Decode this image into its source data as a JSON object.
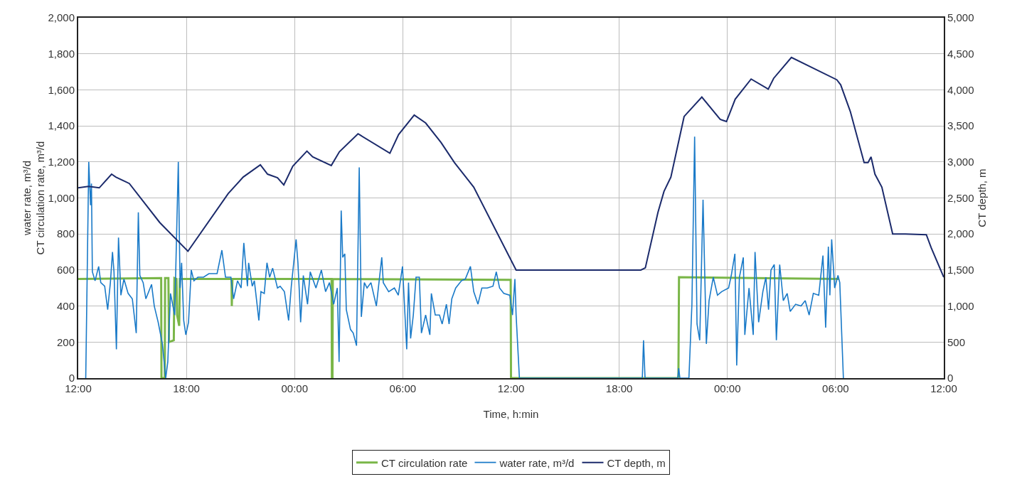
{
  "chart_data": {
    "type": "line",
    "xlabel": "Time, h:min",
    "ylabel": "water rate, m³/d\nCT circulation rate, m³/d",
    "y2label": "CT depth, m",
    "xlim": [
      "--01-01T12:00",
      "--01-03T12:00"
    ],
    "xticks": [
      {
        "value": "--01-01T12:00",
        "label": "12:00"
      },
      {
        "value": "--01-01T18:00",
        "label": "18:00"
      },
      {
        "value": "--01-02T00:00",
        "label": "00:00"
      },
      {
        "value": "--01-02T06:00",
        "label": "06:00"
      },
      {
        "value": "--01-02T12:00",
        "label": "12:00"
      },
      {
        "value": "--01-02T18:00",
        "label": "18:00"
      },
      {
        "value": "--01-03T00:00",
        "label": "00:00"
      },
      {
        "value": "--01-03T06:00",
        "label": "06:00"
      },
      {
        "value": "--01-03T12:00",
        "label": "12:00"
      }
    ],
    "ylim": [
      0,
      2000
    ],
    "yticks": [
      0,
      200,
      400,
      600,
      800,
      {
        "value": 1000,
        "label": "1,000"
      },
      {
        "value": 1200,
        "label": "1,200"
      },
      {
        "value": 1400,
        "label": "1,400"
      },
      {
        "value": 1600,
        "label": "1,600"
      },
      {
        "value": 1800,
        "label": "1,800"
      },
      {
        "value": 2000,
        "label": "2,000"
      }
    ],
    "y2lim": [
      0,
      5000
    ],
    "y2ticks": [
      0,
      500,
      {
        "value": 1000,
        "label": "1,000"
      },
      {
        "value": 1500,
        "label": "1,500"
      },
      {
        "value": 2000,
        "label": "2,000"
      },
      {
        "value": 2500,
        "label": "2,500"
      },
      {
        "value": 3000,
        "label": "3,000"
      },
      {
        "value": 3500,
        "label": "3,500"
      },
      {
        "value": 4000,
        "label": "4,000"
      },
      {
        "value": 4500,
        "label": "4,500"
      },
      {
        "value": 5000,
        "label": "5,000"
      }
    ],
    "grid": true,
    "legend": "bottom",
    "marker": "none",
    "line_style": "solid",
    "series": [
      {
        "name": "CT circulation rate",
        "color": "#7ab648",
        "axis": "y",
        "x": [
          "--01-01T12:00",
          "--01-01T16:36",
          "--01-01T16:37",
          "--01-01T16:48",
          "--01-01T16:49",
          "--01-01T17:00",
          "--01-01T17:02",
          "--01-01T17:18",
          "--01-01T17:20",
          "--01-01T17:27",
          "--01-01T17:29",
          "--01-01T17:36",
          "--01-01T17:38",
          "--01-01T20:30",
          "--01-01T20:31",
          "--01-01T20:33",
          "--01-02T02:03",
          "--01-02T02:04",
          "--01-02T02:06",
          "--01-02T02:07",
          "--01-02T11:59",
          "--01-02T12:00",
          "--01-02T21:17",
          "--01-02T21:18",
          "--01-02T21:19",
          "--01-03T06:12"
        ],
        "values": [
          550,
          555,
          0,
          0,
          555,
          555,
          200,
          210,
          555,
          550,
          350,
          290,
          550,
          550,
          400,
          550,
          550,
          0,
          0,
          550,
          545,
          0,
          0,
          260,
          560,
          550
        ]
      },
      {
        "name": "water rate, m³/d",
        "color": "#1a7ac8",
        "axis": "y",
        "x": [
          "--01-01T12:25",
          "--01-01T12:35",
          "--01-01T12:41",
          "--01-01T12:44",
          "--01-01T12:47",
          "--01-01T12:56",
          "--01-01T13:08",
          "--01-01T13:15",
          "--01-01T13:28",
          "--01-01T13:38",
          "--01-01T13:47",
          "--01-01T13:54",
          "--01-01T13:59",
          "--01-01T14:07",
          "--01-01T14:14",
          "--01-01T14:22",
          "--01-01T14:32",
          "--01-01T14:46",
          "--01-01T15:00",
          "--01-01T15:13",
          "--01-01T15:20",
          "--01-01T15:25",
          "--01-01T15:36",
          "--01-01T15:45",
          "--01-01T16:04",
          "--01-01T16:13",
          "--01-01T16:26",
          "--01-01T16:40",
          "--01-01T16:51",
          "--01-01T16:58",
          "--01-01T17:07",
          "--01-01T17:21",
          "--01-01T17:33",
          "--01-01T17:39",
          "--01-01T17:44",
          "--01-01T17:51",
          "--01-01T17:58",
          "--01-01T18:07",
          "--01-01T18:16",
          "--01-01T18:25",
          "--01-01T18:38",
          "--01-01T18:57",
          "--01-01T19:15",
          "--01-01T19:42",
          "--01-01T19:58",
          "--01-01T20:10",
          "--01-01T20:28",
          "--01-01T20:37",
          "--01-01T20:50",
          "--01-01T21:02",
          "--01-01T21:11",
          "--01-01T21:23",
          "--01-01T21:27",
          "--01-01T21:39",
          "--01-01T21:46",
          "--01-01T21:55",
          "--01-01T22:01",
          "--01-01T22:08",
          "--01-01T22:19",
          "--01-01T22:28",
          "--01-01T22:37",
          "--01-01T22:47",
          "--01-01T23:03",
          "--01-01T23:12",
          "--01-01T23:26",
          "--01-01T23:40",
          "--01-01T23:49",
          "--01-02T00:05",
          "--01-02T00:11",
          "--01-02T00:16",
          "--01-02T00:20",
          "--01-02T00:29",
          "--01-02T00:43",
          "--01-02T00:52",
          "--01-02T01:11",
          "--01-02T01:29",
          "--01-02T01:43",
          "--01-02T01:56",
          "--01-02T02:10",
          "--01-02T02:22",
          "--01-02T02:28",
          "--01-02T02:35",
          "--01-02T02:40",
          "--01-02T02:47",
          "--01-02T02:52",
          "--01-02T03:06",
          "--01-02T03:15",
          "--01-02T03:26",
          "--01-02T03:35",
          "--01-02T03:42",
          "--01-02T03:52",
          "--01-02T04:01",
          "--01-02T04:14",
          "--01-02T04:32",
          "--01-02T04:50",
          "--01-02T04:55",
          "--01-02T05:13",
          "--01-02T05:32",
          "--01-02T05:45",
          "--01-02T05:59",
          "--01-02T06:13",
          "--01-02T06:19",
          "--01-02T06:26",
          "--01-02T06:35",
          "--01-02T06:44",
          "--01-02T06:55",
          "--01-02T07:02",
          "--01-02T07:16",
          "--01-02T07:30",
          "--01-02T07:35",
          "--01-02T07:48",
          "--01-02T08:02",
          "--01-02T08:11",
          "--01-02T08:25",
          "--01-02T08:34",
          "--01-02T08:43",
          "--01-02T08:56",
          "--01-02T09:15",
          "--01-02T09:28",
          "--01-02T09:45",
          "--01-02T09:56",
          "--01-02T10:10",
          "--01-02T10:23",
          "--01-02T10:41",
          "--01-02T11:00",
          "--01-02T11:11",
          "--01-02T11:22",
          "--01-02T11:36",
          "--01-02T11:56",
          "--01-02T12:05",
          "--01-02T12:13",
          "--01-02T12:17",
          "--01-02T12:28",
          "--01-02T19:17",
          "--01-02T19:21",
          "--01-02T19:26",
          "--01-02T21:15",
          "--01-02T21:18",
          "--01-02T21:22",
          "--01-02T21:52",
          "--01-02T22:02",
          "--01-02T22:11",
          "--01-02T22:19",
          "--01-02T22:28",
          "--01-02T22:39",
          "--01-02T22:50",
          "--01-02T22:59",
          "--01-02T23:13",
          "--01-02T23:27",
          "--01-02T23:41",
          "--01-03T00:04",
          "--01-03T00:13",
          "--01-03T00:25",
          "--01-03T00:31",
          "--01-03T00:40",
          "--01-03T00:53",
          "--01-03T00:58",
          "--01-03T01:12",
          "--01-03T01:26",
          "--01-03T01:32",
          "--01-03T01:44",
          "--01-03T01:58",
          "--01-03T02:08",
          "--01-03T02:17",
          "--01-03T02:25",
          "--01-03T02:36",
          "--01-03T02:43",
          "--01-03T02:54",
          "--01-03T03:06",
          "--01-03T03:19",
          "--01-03T03:29",
          "--01-03T03:47",
          "--01-03T04:05",
          "--01-03T04:19",
          "--01-03T04:32",
          "--01-03T04:46",
          "--01-03T05:04",
          "--01-03T05:18",
          "--01-03T05:27",
          "--01-03T05:36",
          "--01-03T05:41",
          "--01-03T05:47",
          "--01-03T05:57",
          "--01-03T06:08",
          "--01-03T06:14",
          "--01-03T06:26"
        ],
        "values": [
          0,
          1200,
          960,
          1080,
          590,
          540,
          620,
          530,
          510,
          380,
          530,
          700,
          590,
          160,
          780,
          460,
          550,
          470,
          440,
          250,
          920,
          570,
          530,
          440,
          520,
          400,
          310,
          190,
          0,
          90,
          470,
          350,
          1200,
          500,
          640,
          320,
          240,
          310,
          600,
          540,
          560,
          560,
          580,
          580,
          710,
          560,
          560,
          440,
          540,
          500,
          750,
          510,
          640,
          510,
          540,
          410,
          320,
          480,
          470,
          640,
          560,
          610,
          500,
          510,
          480,
          320,
          510,
          770,
          640,
          470,
          310,
          570,
          410,
          590,
          500,
          600,
          480,
          530,
          410,
          500,
          90,
          930,
          670,
          690,
          380,
          270,
          250,
          180,
          1170,
          340,
          530,
          500,
          530,
          400,
          670,
          530,
          480,
          500,
          460,
          620,
          160,
          530,
          220,
          350,
          560,
          560,
          250,
          350,
          240,
          470,
          350,
          350,
          300,
          410,
          300,
          440,
          500,
          540,
          550,
          620,
          480,
          410,
          500,
          500,
          510,
          590,
          500,
          470,
          460,
          350,
          550,
          350,
          0,
          0,
          210,
          0,
          0,
          55,
          0,
          0,
          410,
          1340,
          300,
          210,
          990,
          190,
          430,
          560,
          460,
          480,
          500,
          570,
          690,
          70,
          560,
          670,
          240,
          500,
          240,
          700,
          310,
          480,
          560,
          380,
          600,
          630,
          210,
          630,
          430,
          470,
          370,
          410,
          400,
          430,
          350,
          470,
          460,
          680,
          280,
          730,
          460,
          770,
          500,
          570,
          530,
          0
        ]
      },
      {
        "name": "CT depth, m",
        "color": "#1b2a6b",
        "axis": "y2",
        "x": [
          "--01-01T12:00",
          "--01-01T12:34",
          "--01-01T13:10",
          "--01-01T13:51",
          "--01-01T14:05",
          "--01-01T14:50",
          "--01-01T16:31",
          "--01-01T18:05",
          "--01-01T20:19",
          "--01-01T21:09",
          "--01-01T22:06",
          "--01-01T22:30",
          "--01-01T23:03",
          "--01-01T23:24",
          "--01-01T23:54",
          "--01-02T00:41",
          "--01-02T01:00",
          "--01-02T02:02",
          "--01-02T02:29",
          "--01-02T03:31",
          "--01-02T05:17",
          "--01-02T05:46",
          "--01-02T06:38",
          "--01-02T07:16",
          "--01-02T08:07",
          "--01-02T08:52",
          "--01-02T09:56",
          "--01-02T12:17",
          "--01-02T19:12",
          "--01-02T19:27",
          "--01-02T20:09",
          "--01-02T20:29",
          "--01-02T20:52",
          "--01-02T21:36",
          "--01-02T22:35",
          "--01-02T23:36",
          "--01-02T23:57",
          "--01-03T00:26",
          "--01-03T01:19",
          "--01-03T02:16",
          "--01-03T02:34",
          "--01-03T03:33",
          "--01-03T06:04",
          "--01-03T06:17",
          "--01-03T06:49",
          "--01-03T07:35",
          "--01-03T07:48",
          "--01-03T07:58",
          "--01-03T08:11",
          "--01-03T08:34",
          "--01-03T09:10",
          "--01-03T09:52",
          "--01-03T11:02",
          "--01-03T11:18",
          "--01-03T12:00"
        ],
        "values": [
          2640,
          2660,
          2640,
          2830,
          2790,
          2700,
          2160,
          1760,
          2560,
          2790,
          2960,
          2830,
          2780,
          2680,
          2940,
          3150,
          3070,
          2950,
          3140,
          3390,
          3120,
          3380,
          3650,
          3540,
          3270,
          2990,
          2650,
          1500,
          1500,
          1530,
          2300,
          2590,
          2790,
          3630,
          3900,
          3590,
          3560,
          3870,
          4150,
          4010,
          4160,
          4450,
          4140,
          4070,
          3700,
          2990,
          2990,
          3070,
          2830,
          2650,
          2000,
          2000,
          1990,
          1810,
          1400
        ]
      }
    ]
  }
}
